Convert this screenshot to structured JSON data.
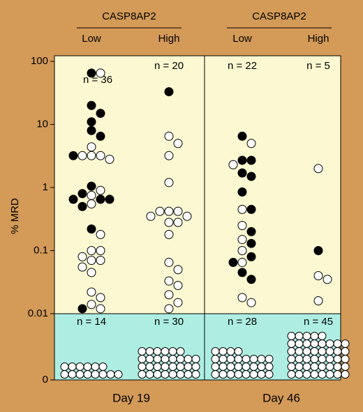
{
  "chart_data": {
    "type": "dotplot",
    "ylabel": "% MRD",
    "log_scale": true,
    "ylim": [
      0.01,
      100
    ],
    "yticks": [
      100,
      10,
      1,
      0.1,
      0.01
    ],
    "undetectable_tick": 0,
    "filled_color": "#000000",
    "open_color": "#ffffff",
    "panels": [
      {
        "title": "Day 19",
        "header": "CASP8AP2",
        "groups": [
          {
            "name": "Low",
            "n_label": "n = 36",
            "values": [
              65,
              65,
              20,
              15,
              11,
              8,
              6.5,
              4.4,
              3.2,
              3.2,
              3.2,
              2.8,
              3.2,
              1.05,
              0.9,
              0.8,
              0.75,
              0.65,
              0.65,
              0.65,
              0.55,
              0.5,
              0.22,
              0.18,
              0.1,
              0.1,
              0.08,
              0.07,
              0.07,
              0.055,
              0.045,
              0.022,
              0.018,
              0.014,
              0.012,
              0.012
            ],
            "filled": [
              true,
              false,
              true,
              true,
              true,
              true,
              true,
              false,
              false,
              false,
              false,
              false,
              true,
              true,
              false,
              true,
              false,
              true,
              true,
              true,
              false,
              true,
              true,
              false,
              false,
              false,
              false,
              false,
              false,
              false,
              false,
              false,
              false,
              false,
              false,
              true
            ],
            "undetectable_n_label": "n = 14",
            "undetectable_count": 14
          },
          {
            "name": "High",
            "n_label": "n = 20",
            "values": [
              33,
              6.5,
              5,
              3.2,
              1.2,
              0.42,
              0.42,
              0.42,
              0.35,
              0.35,
              0.28,
              0.28,
              0.18,
              0.065,
              0.05,
              0.033,
              0.028,
              0.02,
              0.015,
              0.012
            ],
            "filled": [
              true,
              false,
              false,
              false,
              false,
              false,
              false,
              false,
              false,
              false,
              false,
              false,
              false,
              false,
              false,
              false,
              false,
              false,
              false,
              false
            ],
            "undetectable_n_label": "n = 30",
            "undetectable_count": 30
          }
        ]
      },
      {
        "title": "Day 46",
        "header": "CASP8AP2",
        "groups": [
          {
            "name": "Low",
            "n_label": "n = 22",
            "values": [
              6.5,
              5,
              2.7,
              2.7,
              2.3,
              1.7,
              1.5,
              0.85,
              0.45,
              0.45,
              0.25,
              0.2,
              0.15,
              0.13,
              0.1,
              0.08,
              0.065,
              0.065,
              0.045,
              0.035,
              0.018,
              0.015
            ],
            "filled": [
              true,
              false,
              true,
              true,
              false,
              true,
              true,
              true,
              false,
              true,
              false,
              true,
              false,
              true,
              false,
              true,
              false,
              true,
              true,
              true,
              false,
              false
            ],
            "undetectable_n_label": "n = 28",
            "undetectable_count": 28
          },
          {
            "name": "High",
            "n_label": "n = 5",
            "values": [
              2,
              0.1,
              0.04,
              0.035,
              0.016
            ],
            "filled": [
              false,
              true,
              false,
              false,
              false
            ],
            "undetectable_n_label": "n = 45",
            "undetectable_count": 45
          }
        ]
      }
    ]
  }
}
